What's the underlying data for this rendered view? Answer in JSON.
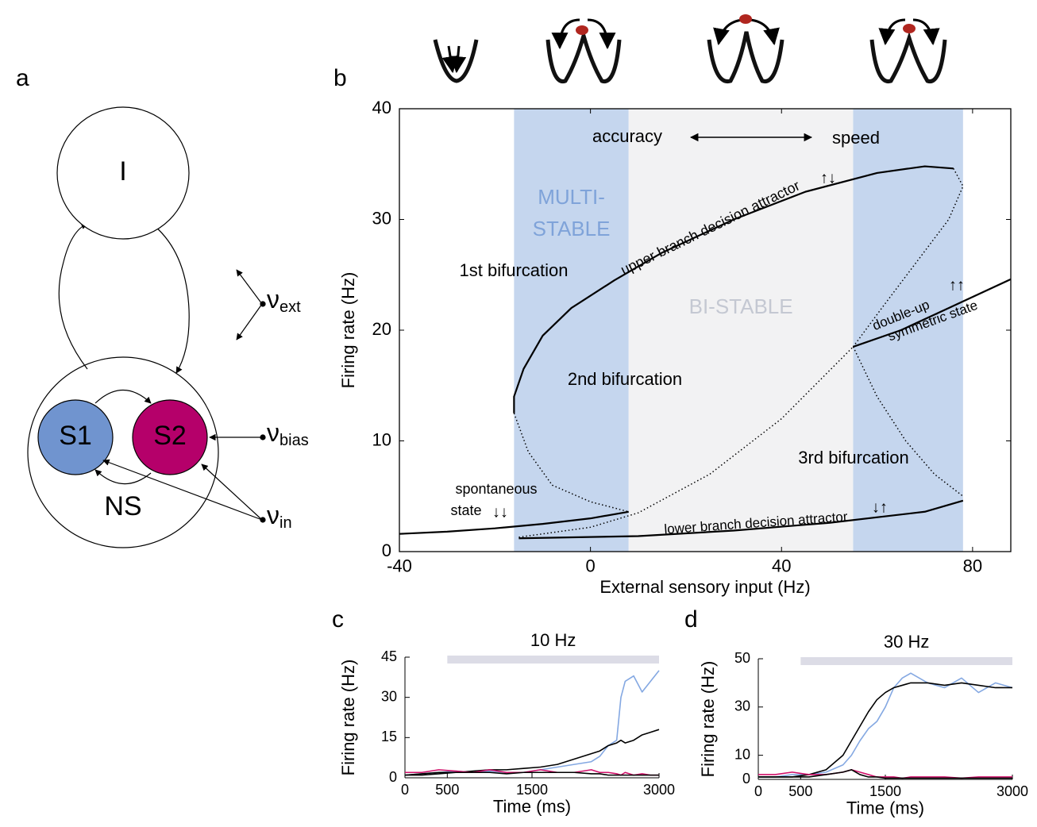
{
  "diagram": {
    "panel": "a",
    "nodes": [
      "I",
      "S1",
      "S2",
      "NS"
    ],
    "inputs": [
      {
        "symbol": "ν",
        "sub": "ext"
      },
      {
        "symbol": "ν",
        "sub": "bias"
      },
      {
        "symbol": "ν",
        "sub": "in"
      }
    ]
  },
  "chart_data": [
    {
      "type": "line",
      "panel": "b",
      "x_label": "External sensory input (Hz)",
      "y_label": "Firing rate (Hz)",
      "xlim": [
        -40,
        88
      ],
      "ylim": [
        0,
        40
      ],
      "xticks": [
        -40,
        0,
        40,
        80
      ],
      "yticks": [
        0,
        10,
        20,
        30,
        40
      ],
      "regions": [
        {
          "x": [
            -16,
            8
          ],
          "color": "#c5d6ee",
          "label": [
            "MULTI-",
            "STABLE"
          ],
          "label_color": "#7fa3d9"
        },
        {
          "x": [
            8,
            55
          ],
          "color": "#f2f2f3",
          "label": [
            "BI-STABLE"
          ],
          "label_color": "#c4c8d2"
        },
        {
          "x": [
            55,
            78
          ],
          "color": "#c5d6ee"
        }
      ],
      "annotations": [
        "accuracy",
        "speed",
        "1st bifurcation",
        "2nd bifurcation",
        "3rd bifurcation",
        "upper branch decision attractor",
        "↑↓",
        "double-up",
        "↑↑",
        "symmetric  state",
        "spontaneous",
        "state",
        "↓↓",
        "lower branch decision attractor",
        "↓↑"
      ],
      "series": [
        {
          "color": "#000000",
          "style": "solid",
          "x": [
            -40,
            -30,
            -20,
            -10,
            0,
            8
          ],
          "values": [
            1.6,
            1.8,
            2.1,
            2.5,
            3.0,
            3.6
          ]
        },
        {
          "color": "#000000",
          "style": "solid",
          "x": [
            -16,
            -16,
            -14,
            -10,
            -4,
            5,
            15,
            30,
            45,
            60,
            70,
            76
          ],
          "values": [
            12.5,
            14,
            16.5,
            19.5,
            22,
            24.5,
            27,
            30,
            32.5,
            34.2,
            34.8,
            34.6
          ]
        },
        {
          "color": "#000000",
          "style": "dotted",
          "x": [
            76,
            78,
            75,
            68,
            61,
            55
          ],
          "values": [
            34.6,
            33,
            30,
            26,
            22,
            18.5
          ]
        },
        {
          "color": "#000000",
          "style": "dotted",
          "x": [
            55,
            60,
            66,
            72,
            78
          ],
          "values": [
            18.5,
            14,
            10,
            7,
            5
          ]
        },
        {
          "color": "#000000",
          "style": "dotted",
          "x": [
            -16,
            -13,
            -8,
            0,
            8
          ],
          "values": [
            12.5,
            9,
            6,
            4.5,
            3.6
          ]
        },
        {
          "color": "#000000",
          "style": "dotted",
          "x": [
            -15,
            0,
            10,
            25,
            40,
            55
          ],
          "values": [
            1.3,
            2.2,
            3.5,
            7,
            12,
            18.5
          ]
        },
        {
          "color": "#000000",
          "style": "solid",
          "x": [
            -15,
            10,
            30,
            50,
            70,
            78
          ],
          "values": [
            1.2,
            1.4,
            1.9,
            2.6,
            3.6,
            4.6
          ]
        },
        {
          "color": "#000000",
          "style": "solid",
          "x": [
            55,
            65,
            75,
            88
          ],
          "values": [
            18.5,
            20,
            22,
            24.6
          ]
        }
      ]
    },
    {
      "type": "line",
      "panel": "c",
      "x_label": "Time (ms)",
      "y_label": "Firing rate (Hz)",
      "stimulus": [
        500,
        3000
      ],
      "stimulus_label": "10 Hz",
      "stimulus_color": "#dcdce6",
      "xlim": [
        0,
        3000
      ],
      "ylim": [
        0,
        45
      ],
      "xticks": [
        0,
        500,
        1500,
        3000
      ],
      "yticks": [
        0,
        15,
        30,
        45
      ],
      "x": [
        0,
        200,
        400,
        600,
        800,
        1000,
        1200,
        1400,
        1600,
        1800,
        2000,
        2200,
        2300,
        2400,
        2500,
        2550,
        2600,
        2700,
        2800,
        2900,
        3000
      ],
      "series": [
        {
          "color": "#84a8e2",
          "values": [
            1,
            1.5,
            2,
            2.5,
            2,
            2.5,
            2,
            2,
            3,
            4,
            5,
            6,
            8,
            12,
            14,
            30,
            36,
            38,
            32,
            36,
            40
          ]
        },
        {
          "color": "#000000",
          "values": [
            1,
            1.5,
            2,
            2,
            2.5,
            3,
            3,
            3.5,
            4,
            5,
            7,
            9,
            10,
            12,
            13,
            14,
            13,
            14,
            16,
            17,
            18
          ]
        },
        {
          "color": "#d0106a",
          "values": [
            2,
            2,
            3,
            2.5,
            2,
            3,
            2,
            2,
            3,
            2,
            2,
            3,
            2,
            2,
            1.5,
            1,
            2,
            1,
            1.5,
            1,
            1
          ]
        },
        {
          "color": "#000000",
          "values": [
            1,
            1,
            1.5,
            2,
            2,
            2,
            1.5,
            2,
            2,
            2,
            2,
            1.5,
            1.5,
            1,
            1,
            1,
            1,
            1,
            1,
            1,
            1
          ]
        }
      ]
    },
    {
      "type": "line",
      "panel": "d",
      "x_label": "Time (ms)",
      "y_label": "Firing rate (Hz)",
      "stimulus": [
        500,
        3000
      ],
      "stimulus_label": "30 Hz",
      "stimulus_color": "#dcdce6",
      "xlim": [
        0,
        3000
      ],
      "ylim": [
        0,
        50
      ],
      "xticks": [
        0,
        500,
        1500,
        3000
      ],
      "yticks": [
        0,
        10,
        30,
        50
      ],
      "x": [
        0,
        200,
        400,
        600,
        800,
        1000,
        1100,
        1200,
        1300,
        1400,
        1500,
        1600,
        1700,
        1800,
        2000,
        2200,
        2400,
        2600,
        2800,
        3000
      ],
      "series": [
        {
          "color": "#84a8e2",
          "values": [
            1,
            1,
            2,
            2,
            3,
            6,
            10,
            16,
            21,
            24,
            30,
            38,
            42,
            44,
            40,
            38,
            42,
            36,
            40,
            38
          ]
        },
        {
          "color": "#000000",
          "values": [
            1,
            1,
            1,
            2,
            4,
            10,
            16,
            22,
            28,
            33,
            36,
            38,
            39,
            40,
            40,
            39,
            40,
            39,
            38,
            38
          ]
        },
        {
          "color": "#d0106a",
          "values": [
            2,
            2,
            3,
            2,
            2,
            3,
            4,
            3,
            2,
            1,
            1,
            1,
            0.5,
            1,
            1,
            1,
            0.5,
            1,
            1,
            1
          ]
        },
        {
          "color": "#000000",
          "values": [
            1,
            1,
            1,
            1,
            2,
            3,
            4,
            2,
            1,
            1,
            0.5,
            0.5,
            0.5,
            0.5,
            0.5,
            0.5,
            0.5,
            0.5,
            0.5,
            0.5
          ]
        }
      ]
    }
  ]
}
